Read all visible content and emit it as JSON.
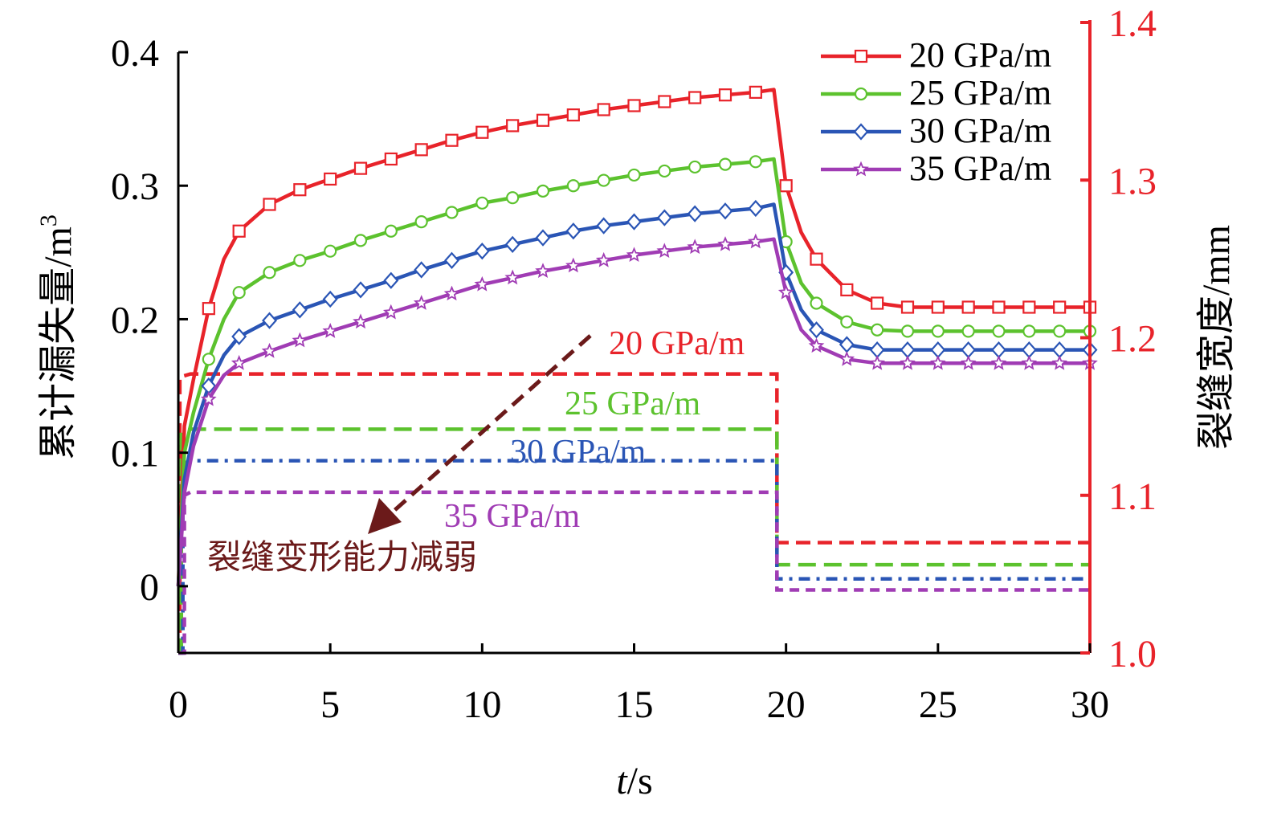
{
  "chart_data": {
    "type": "line",
    "xlabel_italic": "t",
    "xlabel_rest": "/s",
    "ylabel_left": "累计漏失量/m",
    "ylabel_left_sup": "3",
    "ylabel_right": "裂缝宽度/mm",
    "xlim": [
      0,
      30
    ],
    "ylim_left": [
      -0.05,
      0.4
    ],
    "ylim_right": [
      1.0,
      1.4
    ],
    "x_ticks": [
      "0",
      "5",
      "10",
      "15",
      "20",
      "25",
      "30"
    ],
    "y_left_ticks": [
      "0",
      "0.1",
      "0.2",
      "0.3",
      "0.4"
    ],
    "y_right_ticks": [
      "1.0",
      "1.1",
      "1.2",
      "1.3",
      "1.4"
    ],
    "legend": {
      "placement": "top-right",
      "entries": [
        "20 GPa/m",
        "25 GPa/m",
        "30 GPa/m",
        "35 GPa/m"
      ]
    },
    "annotations": {
      "width_labels": [
        "20 GPa/m",
        "25 GPa/m",
        "30 GPa/m",
        "35 GPa/m"
      ],
      "arrow_text": "裂缝变形能力减弱"
    },
    "colors": {
      "20": "#e8232a",
      "25": "#5cc22e",
      "30": "#2a55b5",
      "35": "#a03cb4",
      "arrow": "#6b1a1a",
      "right_axis": "#e8232a"
    },
    "leakage_series": [
      {
        "name": "20 GPa/m",
        "marker": "square",
        "x": [
          0,
          0.2,
          0.5,
          1,
          1.5,
          2,
          3,
          4,
          5,
          6,
          7,
          8,
          9,
          10,
          11,
          12,
          13,
          14,
          15,
          16,
          17,
          18,
          19,
          19.6,
          20,
          20.5,
          21,
          22,
          23,
          24,
          25,
          26,
          27,
          28,
          29,
          30
        ],
        "values": [
          0,
          0.12,
          0.155,
          0.208,
          0.245,
          0.266,
          0.286,
          0.297,
          0.305,
          0.313,
          0.32,
          0.327,
          0.334,
          0.34,
          0.345,
          0.349,
          0.353,
          0.357,
          0.36,
          0.363,
          0.366,
          0.368,
          0.37,
          0.372,
          0.3,
          0.265,
          0.245,
          0.222,
          0.212,
          0.209,
          0.209,
          0.209,
          0.209,
          0.209,
          0.209,
          0.209
        ]
      },
      {
        "name": "25 GPa/m",
        "marker": "circle",
        "x": [
          0,
          0.2,
          0.5,
          1,
          1.5,
          2,
          3,
          4,
          5,
          6,
          7,
          8,
          9,
          10,
          11,
          12,
          13,
          14,
          15,
          16,
          17,
          18,
          19,
          19.6,
          20,
          20.5,
          21,
          22,
          23,
          24,
          25,
          26,
          27,
          28,
          29,
          30
        ],
        "values": [
          0,
          0.1,
          0.13,
          0.17,
          0.2,
          0.22,
          0.235,
          0.244,
          0.251,
          0.259,
          0.266,
          0.273,
          0.28,
          0.287,
          0.291,
          0.296,
          0.3,
          0.304,
          0.308,
          0.311,
          0.314,
          0.316,
          0.318,
          0.32,
          0.258,
          0.227,
          0.212,
          0.198,
          0.192,
          0.191,
          0.191,
          0.191,
          0.191,
          0.191,
          0.191,
          0.191
        ]
      },
      {
        "name": "30 GPa/m",
        "marker": "diamond",
        "x": [
          0,
          0.2,
          0.5,
          1,
          1.5,
          2,
          3,
          4,
          5,
          6,
          7,
          8,
          9,
          10,
          11,
          12,
          13,
          14,
          15,
          16,
          17,
          18,
          19,
          19.6,
          20,
          20.5,
          21,
          22,
          23,
          24,
          25,
          26,
          27,
          28,
          29,
          30
        ],
        "values": [
          0,
          0.08,
          0.115,
          0.15,
          0.173,
          0.187,
          0.199,
          0.207,
          0.215,
          0.222,
          0.229,
          0.237,
          0.244,
          0.251,
          0.256,
          0.261,
          0.266,
          0.27,
          0.273,
          0.276,
          0.279,
          0.281,
          0.283,
          0.286,
          0.235,
          0.207,
          0.192,
          0.181,
          0.177,
          0.177,
          0.177,
          0.177,
          0.177,
          0.177,
          0.177,
          0.177
        ]
      },
      {
        "name": "35 GPa/m",
        "marker": "star",
        "x": [
          0,
          0.2,
          0.5,
          1,
          1.5,
          2,
          3,
          4,
          5,
          6,
          7,
          8,
          9,
          10,
          11,
          12,
          13,
          14,
          15,
          16,
          17,
          18,
          19,
          19.6,
          20,
          20.5,
          21,
          22,
          23,
          24,
          25,
          26,
          27,
          28,
          29,
          30
        ],
        "values": [
          0,
          0.07,
          0.105,
          0.14,
          0.158,
          0.167,
          0.176,
          0.184,
          0.191,
          0.198,
          0.205,
          0.212,
          0.219,
          0.226,
          0.231,
          0.236,
          0.24,
          0.244,
          0.248,
          0.251,
          0.254,
          0.256,
          0.258,
          0.26,
          0.22,
          0.192,
          0.18,
          0.17,
          0.167,
          0.167,
          0.167,
          0.167,
          0.167,
          0.167,
          0.167,
          0.167
        ]
      }
    ],
    "width_series": [
      {
        "name": "20 GPa/m",
        "x": [
          0,
          0.05,
          0.05,
          0.4,
          19.7,
          19.7,
          30
        ],
        "values": [
          1.0,
          1.0,
          1.175,
          1.177,
          1.177,
          1.07,
          1.07
        ]
      },
      {
        "name": "25 GPa/m",
        "x": [
          0,
          0.1,
          0.1,
          0.4,
          19.7,
          19.7,
          30
        ],
        "values": [
          1.0,
          1.0,
          1.14,
          1.142,
          1.142,
          1.056,
          1.056
        ]
      },
      {
        "name": "30 GPa/m",
        "x": [
          0,
          0.15,
          0.15,
          0.4,
          19.7,
          19.7,
          30
        ],
        "values": [
          1.0,
          1.0,
          1.12,
          1.122,
          1.122,
          1.047,
          1.047
        ]
      },
      {
        "name": "35 GPa/m",
        "x": [
          0,
          0.2,
          0.2,
          0.4,
          19.7,
          19.7,
          30
        ],
        "values": [
          1.0,
          1.0,
          1.1,
          1.102,
          1.102,
          1.04,
          1.04
        ]
      }
    ]
  }
}
